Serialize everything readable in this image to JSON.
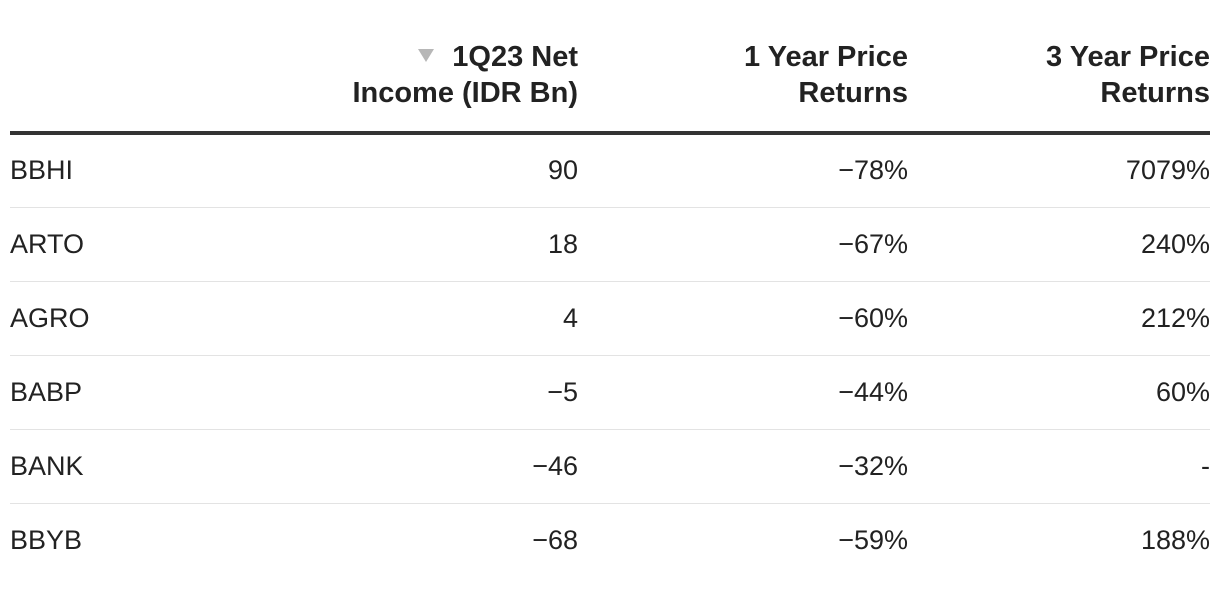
{
  "chart_data": {
    "type": "table",
    "columns": [
      {
        "label_line1": "",
        "label_line2": ""
      },
      {
        "label_line1": "1Q23 Net",
        "label_line2": "Income (IDR Bn)",
        "sorted": "descending"
      },
      {
        "label_line1": "1 Year Price",
        "label_line2": "Returns"
      },
      {
        "label_line1": "3 Year Price",
        "label_line2": "Returns"
      }
    ],
    "rows": [
      {
        "ticker": "BBHI",
        "net_income": "90",
        "return_1y": "−78%",
        "return_3y": "7079%"
      },
      {
        "ticker": "ARTO",
        "net_income": "18",
        "return_1y": "−67%",
        "return_3y": "240%"
      },
      {
        "ticker": "AGRO",
        "net_income": "4",
        "return_1y": "−60%",
        "return_3y": "212%"
      },
      {
        "ticker": "BABP",
        "net_income": "−5",
        "return_1y": "−44%",
        "return_3y": "60%"
      },
      {
        "ticker": "BANK",
        "net_income": "−46",
        "return_1y": "−32%",
        "return_3y": "-"
      },
      {
        "ticker": "BBYB",
        "net_income": "−68",
        "return_1y": "−59%",
        "return_3y": "188%"
      }
    ]
  },
  "icons": {
    "sort_indicator": "triangle-down-icon"
  },
  "colors": {
    "text": "#222222",
    "header_rule": "#333333",
    "row_rule": "#e3e3e3",
    "sort_icon": "#b7b7b7"
  }
}
